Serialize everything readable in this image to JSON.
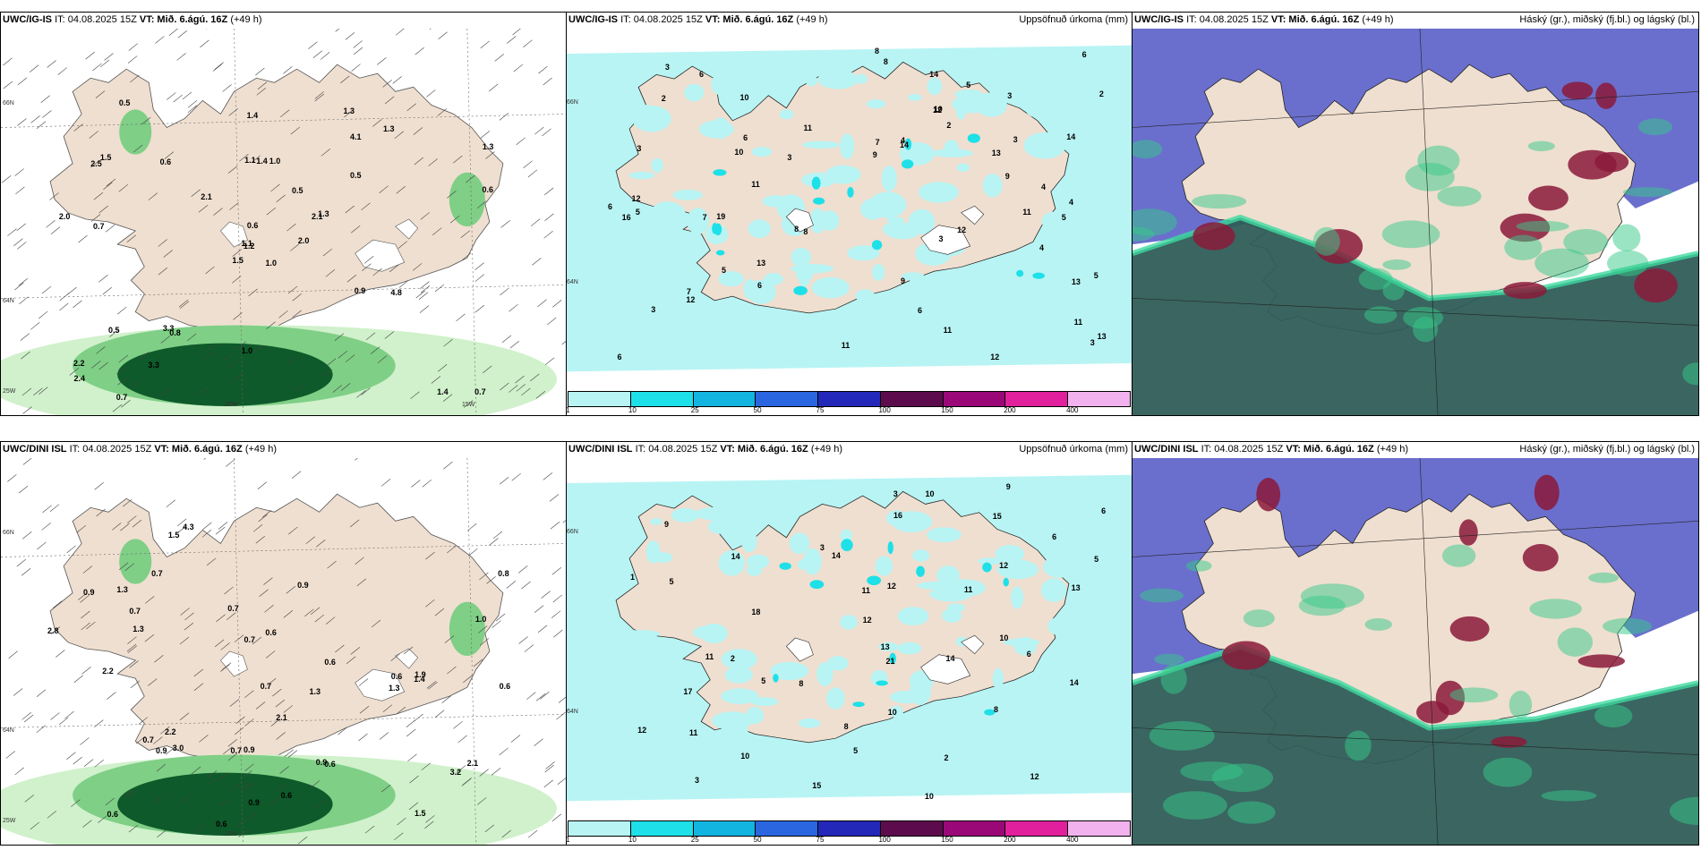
{
  "colors": {
    "land": "#efdfd0",
    "light_green": "#cdf0c8",
    "mid_green": "#7fcf86",
    "dark_green": "#0f5a2a",
    "precip_light": "#b8f4f4",
    "precip_cyan": "#1ee0e8",
    "cloud_purple": "#5a5fc8",
    "cloud_dark": "#2f5d58",
    "cloud_red": "#8b1a3a"
  },
  "panels": [
    {
      "model": "UWC/IG-IS",
      "it": "IT: 04.08.2025 15Z",
      "vt": "VT: Mið. 6.ágú. 16Z",
      "lead": "(+49 h)",
      "right_label": "",
      "axis_labels": [
        "66N",
        "64N",
        "25W",
        "20W",
        "15W"
      ],
      "values": [
        "1.0",
        "2.5",
        "1.2",
        "2.2",
        "2.1",
        "0.8",
        "1.3",
        "1.0",
        "4.1",
        "2.0",
        "0.5",
        "0.7",
        "0.7",
        "1.3",
        "1.5",
        "0.5",
        "0.7",
        "1.1",
        "0.5",
        "0.5",
        "2.1",
        "2.4",
        "3.3",
        "1.4",
        "1.3",
        "4.8",
        "1.5",
        "1.4",
        "2.0",
        "0.9",
        "0.6",
        "1.1",
        "1.0",
        "0.6",
        "0.6",
        "1.3",
        "3.3",
        "1.4"
      ]
    },
    {
      "model": "UWC/IG-IS",
      "it": "IT: 04.08.2025 15Z",
      "vt": "VT: Mið. 6.ágú. 16Z",
      "lead": "(+49 h)",
      "right_label": "Uppsöfnuð úrkoma (mm)",
      "axis_labels": [
        "66N",
        "64N"
      ],
      "legend_ticks": [
        "1",
        "10",
        "25",
        "50",
        "75",
        "100",
        "150",
        "200",
        "400"
      ],
      "legend_colors": [
        "#b8f4f4",
        "#1ee0e8",
        "#12b5e0",
        "#2a66e0",
        "#2428b8",
        "#5c0c4c",
        "#9a0878",
        "#e0209c",
        "#f2b2ee"
      ],
      "values": [
        "3",
        "3",
        "3",
        "9",
        "3",
        "7",
        "9",
        "4",
        "11",
        "13",
        "6",
        "10",
        "6",
        "19",
        "13",
        "16",
        "6",
        "7",
        "5",
        "13",
        "12",
        "8",
        "10",
        "14",
        "11",
        "8",
        "6",
        "12",
        "14",
        "7",
        "12",
        "5",
        "2",
        "11",
        "14",
        "10",
        "6",
        "12",
        "8",
        "4",
        "2",
        "3",
        "4",
        "11",
        "6",
        "11",
        "12",
        "9",
        "3",
        "5",
        "4",
        "13",
        "11",
        "3",
        "8",
        "5",
        "5",
        "3",
        "6",
        "2"
      ]
    },
    {
      "model": "UWC/IG-IS",
      "it": "IT: 04.08.2025 15Z",
      "vt": "VT: Mið. 6.ágú. 16Z",
      "lead": "(+49 h)",
      "right_label": "Háský (gr.), miðský (fj.bl.) og lágský (bl.)"
    },
    {
      "model": "UWC/DINI ISL",
      "it": "IT: 04.08.2025 15Z",
      "vt": "VT: Mið. 6.ágú. 16Z",
      "lead": "(+49 h)",
      "right_label": "",
      "axis_labels": [
        "66N",
        "64N",
        "25W",
        "15W"
      ],
      "values": [
        "0.7",
        "0.9",
        "0.7",
        "1.5",
        "3.0",
        "0.9",
        "2.8",
        "1.3",
        "3.2",
        "1.3",
        "4.3",
        "0.6",
        "1.5",
        "1.9",
        "2.1",
        "0.6",
        "0.7",
        "0.7",
        "0.7",
        "0.9",
        "0.6",
        "0.9",
        "0.7",
        "0.6",
        "1.0",
        "0.6",
        "0.8",
        "0.6",
        "0.6",
        "2.2",
        "0.6",
        "0.9",
        "1.3",
        "2.2",
        "1.4",
        "0.7",
        "2.1",
        "0.9",
        "1.3"
      ]
    },
    {
      "model": "UWC/DINI ISL",
      "it": "IT: 04.08.2025 15Z",
      "vt": "VT: Mið. 6.ágú. 16Z",
      "lead": "(+49 h)",
      "right_label": "Uppsöfnuð úrkoma (mm)",
      "axis_labels": [
        "66N",
        "64N"
      ],
      "legend_ticks": [
        "1",
        "10",
        "25",
        "50",
        "75",
        "100",
        "150",
        "200",
        "400"
      ],
      "legend_colors": [
        "#b8f4f4",
        "#1ee0e8",
        "#12b5e0",
        "#2a66e0",
        "#2428b8",
        "#5c0c4c",
        "#9a0878",
        "#e0209c",
        "#f2b2ee"
      ],
      "values": [
        "10",
        "3",
        "6",
        "12",
        "5",
        "5",
        "11",
        "8",
        "12",
        "14",
        "15",
        "13",
        "11",
        "9",
        "6",
        "10",
        "14",
        "12",
        "13",
        "11",
        "10",
        "12",
        "3",
        "8",
        "14",
        "18",
        "11",
        "10",
        "6",
        "21",
        "15",
        "17",
        "9",
        "10",
        "16",
        "14",
        "5",
        "3",
        "2",
        "2",
        "1",
        "5",
        "12",
        "8"
      ]
    },
    {
      "model": "UWC/DINI ISL",
      "it": "IT: 04.08.2025 15Z",
      "vt": "VT: Mið. 6.ágú. 16Z",
      "lead": "(+49 h)",
      "right_label": "Háský (gr.), miðský (fj.bl.) og lágský (bl.)"
    }
  ]
}
